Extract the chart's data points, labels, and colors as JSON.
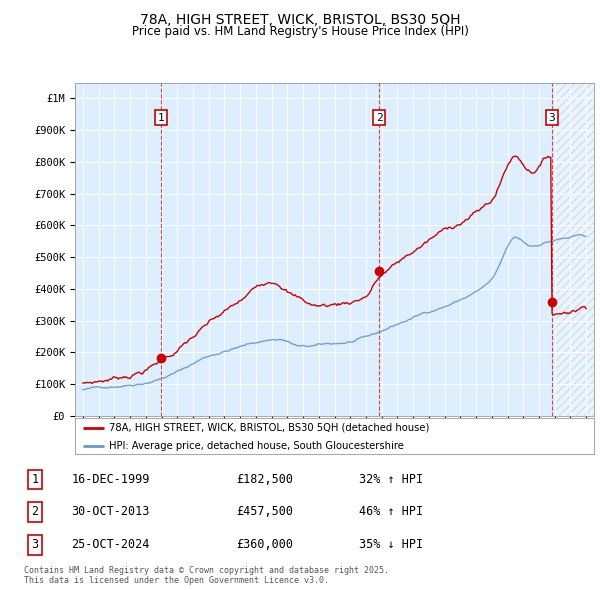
{
  "title_line1": "78A, HIGH STREET, WICK, BRISTOL, BS30 5QH",
  "title_line2": "Price paid vs. HM Land Registry's House Price Index (HPI)",
  "legend_red": "78A, HIGH STREET, WICK, BRISTOL, BS30 5QH (detached house)",
  "legend_blue": "HPI: Average price, detached house, South Gloucestershire",
  "footer": "Contains HM Land Registry data © Crown copyright and database right 2025.\nThis data is licensed under the Open Government Licence v3.0.",
  "transactions": [
    {
      "num": 1,
      "date": "16-DEC-1999",
      "price": 182500,
      "pct": "32%",
      "dir": "↑"
    },
    {
      "num": 2,
      "date": "30-OCT-2013",
      "price": 457500,
      "pct": "46%",
      "dir": "↑"
    },
    {
      "num": 3,
      "date": "25-OCT-2024",
      "price": 360000,
      "pct": "35%",
      "dir": "↓"
    }
  ],
  "transaction_years": [
    1999.96,
    2013.83,
    2024.81
  ],
  "ylim": [
    0,
    1050000
  ],
  "xlim_start": 1994.5,
  "xlim_end": 2027.5,
  "red_color": "#cc0000",
  "blue_color": "#6699cc",
  "bg_color": "#ddeeff",
  "hatch_color": "#aabbcc",
  "dashed_color": "#cc0000",
  "hatch_start": 2025.0
}
